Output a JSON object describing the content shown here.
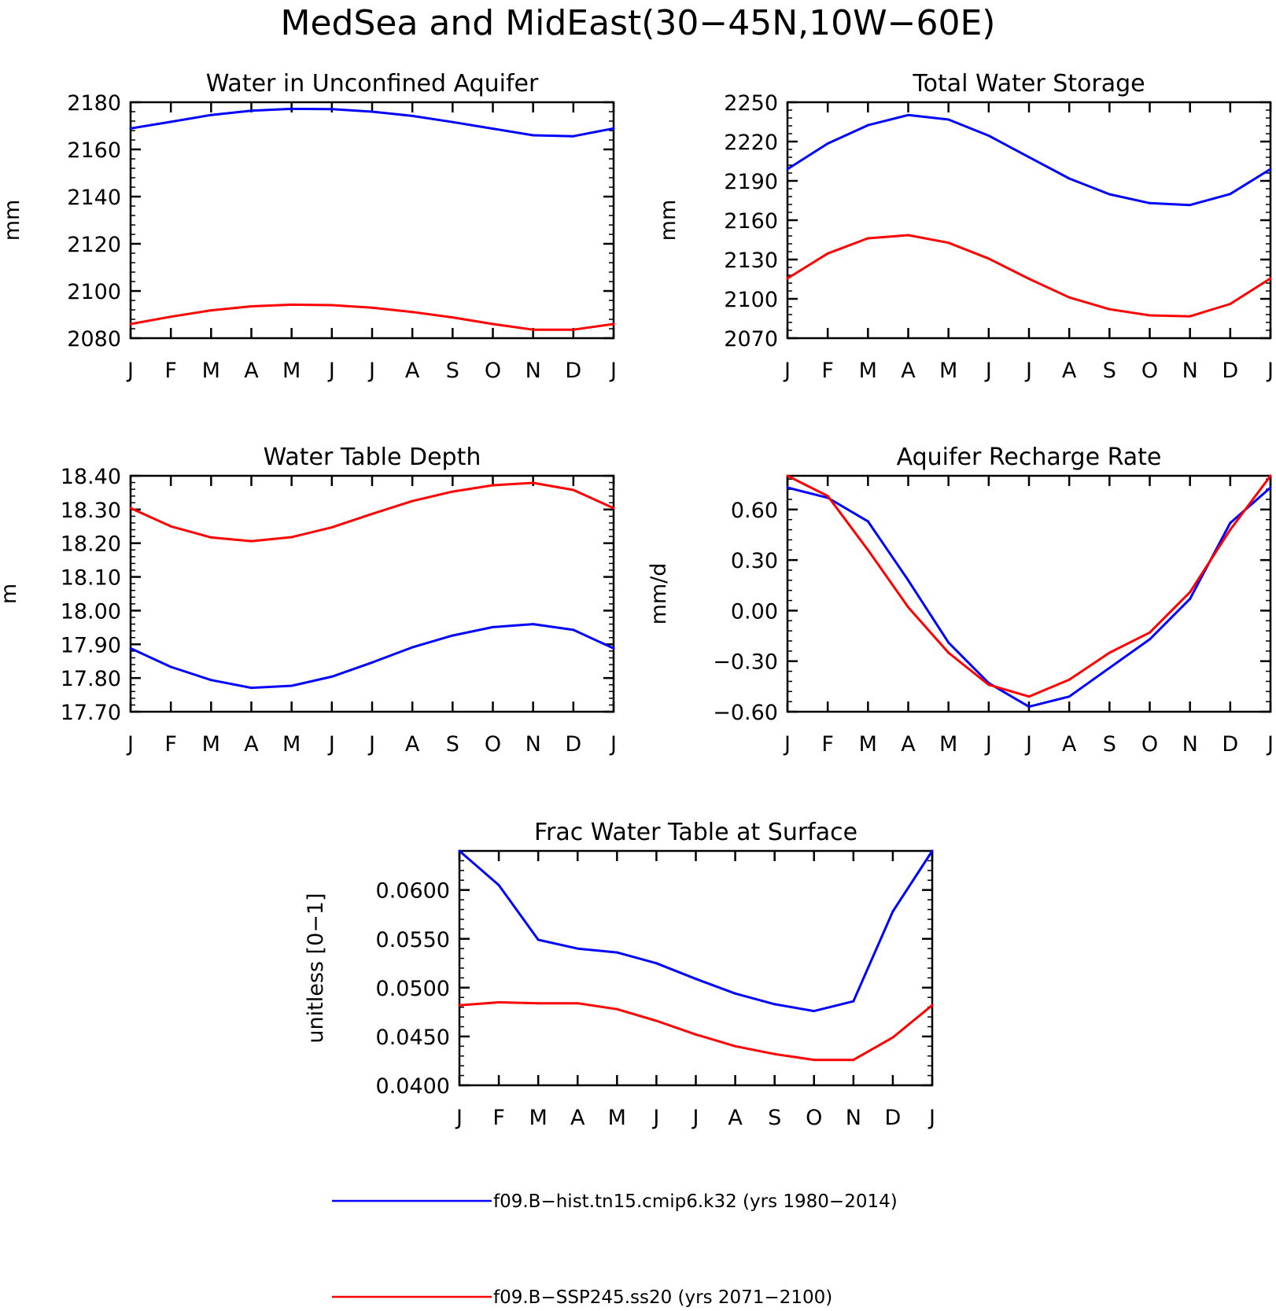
{
  "figure_title": "MedSea and MidEast(30−45N,10W−60E)",
  "months": [
    "J",
    "F",
    "M",
    "A",
    "M",
    "J",
    "J",
    "A",
    "S",
    "O",
    "N",
    "D",
    "J"
  ],
  "colors": {
    "hist": "#0000ff",
    "ssp": "#ff0000"
  },
  "legend": [
    {
      "key": "hist",
      "label": "f09.B−hist.tn15.cmip6.k32 (yrs 1980−2014)"
    },
    {
      "key": "ssp",
      "label": "f09.B−SSP245.ss20 (yrs 2071−2100)"
    }
  ],
  "chart_data": [
    {
      "type": "line",
      "title": "Water in Unconfined Aquifer",
      "ylabel": "mm",
      "ylim": [
        2080,
        2180
      ],
      "yticks": [
        "2080",
        "2100",
        "2120",
        "2140",
        "2160",
        "2180"
      ],
      "x": [
        "J",
        "F",
        "M",
        "A",
        "M",
        "J",
        "J",
        "A",
        "S",
        "O",
        "N",
        "D",
        "J"
      ],
      "series": [
        {
          "name": "f09.B−hist.tn15.cmip6.k32 (yrs 1980−2014)",
          "key": "hist",
          "values": [
            2168.9,
            2171.7,
            2174.6,
            2176.4,
            2177.2,
            2177.1,
            2176.0,
            2174.2,
            2171.6,
            2168.8,
            2166.0,
            2165.6,
            2168.9
          ]
        },
        {
          "name": "f09.B−SSP245.ss20 (yrs 2071−2100)",
          "key": "ssp",
          "values": [
            2086.0,
            2089.1,
            2091.8,
            2093.5,
            2094.2,
            2094.0,
            2092.9,
            2091.1,
            2088.8,
            2086.0,
            2083.6,
            2083.6,
            2086.0
          ]
        }
      ]
    },
    {
      "type": "line",
      "title": "Total Water Storage",
      "ylabel": "mm",
      "ylim": [
        2070,
        2250
      ],
      "yticks": [
        "2070",
        "2100",
        "2130",
        "2160",
        "2190",
        "2220",
        "2250"
      ],
      "x": [
        "J",
        "F",
        "M",
        "A",
        "M",
        "J",
        "J",
        "A",
        "S",
        "O",
        "N",
        "D",
        "J"
      ],
      "series": [
        {
          "name": "f09.B−hist.tn15.cmip6.k32 (yrs 1980−2014)",
          "key": "hist",
          "values": [
            2199.0,
            2218.5,
            2232.5,
            2240.2,
            2236.8,
            2224.5,
            2208.1,
            2191.8,
            2179.8,
            2173.0,
            2171.6,
            2180.0,
            2199.0
          ]
        },
        {
          "name": "f09.B−SSP245.ss20 (yrs 2071−2100)",
          "key": "ssp",
          "values": [
            2115.6,
            2134.6,
            2146.2,
            2148.6,
            2142.8,
            2130.7,
            2115.3,
            2101.1,
            2092.1,
            2087.4,
            2086.7,
            2096.1,
            2115.6
          ]
        }
      ]
    },
    {
      "type": "line",
      "title": "Water Table Depth",
      "ylabel": "m",
      "ylim": [
        17.7,
        18.4
      ],
      "yticks": [
        "17.70",
        "17.80",
        "17.90",
        "18.00",
        "18.10",
        "18.20",
        "18.30",
        "18.40"
      ],
      "x": [
        "J",
        "F",
        "M",
        "A",
        "M",
        "J",
        "J",
        "A",
        "S",
        "O",
        "N",
        "D",
        "J"
      ],
      "series": [
        {
          "name": "f09.B−hist.tn15.cmip6.k32 (yrs 1980−2014)",
          "key": "hist",
          "values": [
            17.888,
            17.833,
            17.794,
            17.771,
            17.777,
            17.804,
            17.846,
            17.891,
            17.926,
            17.951,
            17.96,
            17.943,
            17.888
          ]
        },
        {
          "name": "f09.B−SSP245.ss20 (yrs 2071−2100)",
          "key": "ssp",
          "values": [
            18.304,
            18.25,
            18.217,
            18.206,
            18.218,
            18.247,
            18.287,
            18.325,
            18.353,
            18.372,
            18.379,
            18.358,
            18.304
          ]
        }
      ]
    },
    {
      "type": "line",
      "title": "Aquifer Recharge Rate",
      "ylabel": "mm/d",
      "ylim": [
        -0.6,
        0.8
      ],
      "yticks": [
        "−0.60",
        "−0.30",
        "0.00",
        "0.30",
        "0.60"
      ],
      "x": [
        "J",
        "F",
        "M",
        "A",
        "M",
        "J",
        "J",
        "A",
        "S",
        "O",
        "N",
        "D",
        "J"
      ],
      "series": [
        {
          "name": "f09.B−hist.tn15.cmip6.k32 (yrs 1980−2014)",
          "key": "hist",
          "values": [
            0.73,
            0.67,
            0.53,
            0.18,
            -0.19,
            -0.43,
            -0.57,
            -0.51,
            -0.34,
            -0.17,
            0.07,
            0.52,
            0.73
          ]
        },
        {
          "name": "f09.B−SSP245.ss20 (yrs 2071−2100)",
          "key": "ssp",
          "values": [
            0.8,
            0.68,
            0.36,
            0.02,
            -0.25,
            -0.44,
            -0.51,
            -0.41,
            -0.25,
            -0.13,
            0.11,
            0.48,
            0.8
          ]
        }
      ]
    },
    {
      "type": "line",
      "title": "Frac Water Table at Surface",
      "ylabel": "unitless [0−1]",
      "ylim": [
        0.04,
        0.064
      ],
      "yticks": [
        "0.0400",
        "0.0450",
        "0.0500",
        "0.0550",
        "0.0600"
      ],
      "x": [
        "J",
        "F",
        "M",
        "A",
        "M",
        "J",
        "J",
        "A",
        "S",
        "O",
        "N",
        "D",
        "J"
      ],
      "series": [
        {
          "name": "f09.B−hist.tn15.cmip6.k32 (yrs 1980−2014)",
          "key": "hist",
          "values": [
            0.064,
            0.0605,
            0.0549,
            0.054,
            0.0536,
            0.0525,
            0.0509,
            0.0494,
            0.0483,
            0.0476,
            0.0486,
            0.0578,
            0.064
          ]
        },
        {
          "name": "f09.B−SSP245.ss20 (yrs 2071−2100)",
          "key": "ssp",
          "values": [
            0.0482,
            0.0485,
            0.0484,
            0.0484,
            0.0478,
            0.0466,
            0.0452,
            0.044,
            0.0432,
            0.0426,
            0.0426,
            0.0449,
            0.0482
          ]
        }
      ]
    }
  ]
}
